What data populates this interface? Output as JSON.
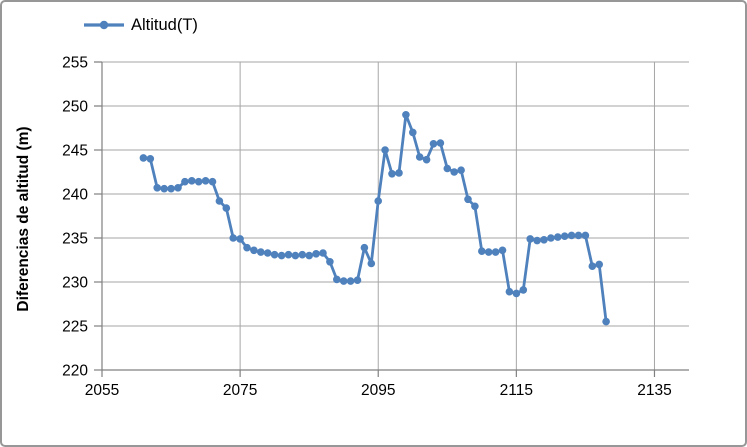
{
  "chart_data": {
    "type": "line",
    "title": "",
    "legend": "Altitud(T)",
    "xlabel": "",
    "ylabel": "Diferencias de altitud (m)",
    "xlim": [
      2055,
      2140
    ],
    "ylim": [
      220,
      255
    ],
    "x_ticks": [
      2055,
      2075,
      2095,
      2115,
      2135
    ],
    "y_ticks": [
      220,
      225,
      230,
      235,
      240,
      245,
      250,
      255
    ],
    "grid": true,
    "legend_position": "top-left",
    "series": [
      {
        "name": "Altitud(T)",
        "color": "#4F81BD",
        "marker": "circle",
        "x": [
          2061,
          2062,
          2063,
          2064,
          2065,
          2066,
          2067,
          2068,
          2069,
          2070,
          2071,
          2072,
          2073,
          2074,
          2075,
          2076,
          2077,
          2078,
          2079,
          2080,
          2081,
          2082,
          2083,
          2084,
          2085,
          2086,
          2087,
          2088,
          2089,
          2090,
          2091,
          2092,
          2093,
          2094,
          2095,
          2096,
          2097,
          2098,
          2099,
          2100,
          2101,
          2102,
          2103,
          2104,
          2105,
          2106,
          2107,
          2108,
          2109,
          2110,
          2111,
          2112,
          2113,
          2114,
          2115,
          2116,
          2117,
          2118,
          2119,
          2120,
          2121,
          2122,
          2123,
          2124,
          2125,
          2126,
          2127,
          2128
        ],
        "y": [
          244.1,
          244.0,
          240.7,
          240.6,
          240.6,
          240.7,
          241.4,
          241.5,
          241.4,
          241.5,
          241.4,
          239.2,
          238.4,
          235.0,
          234.9,
          233.9,
          233.6,
          233.4,
          233.3,
          233.1,
          233.0,
          233.1,
          233.0,
          233.1,
          233.0,
          233.2,
          233.3,
          232.3,
          230.3,
          230.1,
          230.1,
          230.2,
          233.9,
          232.1,
          239.2,
          245.0,
          242.3,
          242.4,
          249.0,
          247.0,
          244.2,
          243.9,
          245.7,
          245.8,
          242.9,
          242.5,
          242.7,
          239.4,
          238.6,
          233.5,
          233.4,
          233.4,
          233.6,
          228.9,
          228.7,
          229.1,
          234.9,
          234.7,
          234.8,
          235.0,
          235.1,
          235.2,
          235.3,
          235.3,
          235.3,
          231.8,
          232.0,
          225.5
        ]
      }
    ]
  },
  "colors": {
    "line": "#4F81BD",
    "gridline": "#A6A6A6",
    "axis": "#808080",
    "text": "#000000",
    "frame_border": "#979797",
    "background": "#FFFFFF"
  }
}
